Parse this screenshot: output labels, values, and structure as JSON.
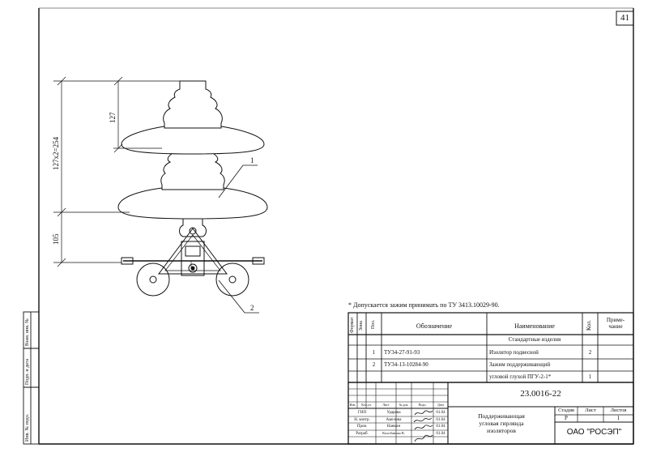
{
  "sheet": {
    "page_number": "41"
  },
  "drawing": {
    "dimensions": {
      "insulator_pitch": "127",
      "string_length": "127x2=254",
      "hardware_length": "105"
    },
    "callouts": [
      "1",
      "2"
    ]
  },
  "note": "* Допускается зажим принимать по ТУ 3413.10029-90.",
  "spec_table": {
    "headers": {
      "format": "Формат",
      "zone": "Зона",
      "pos": "Поз.",
      "designation": "Обозначение",
      "name": "Наименование",
      "qty": "Кол.",
      "remark": "Приме-\nчание"
    },
    "section_title": "Стандартные изделия",
    "rows": [
      {
        "pos": "1",
        "designation": "ТУ34-27-91-93",
        "name": "Изолятор подвесной",
        "qty": "2"
      },
      {
        "pos": "2",
        "designation": "ТУ34-13-10284-90",
        "name": "Зажим поддерживающий",
        "qty": ""
      },
      {
        "pos": "",
        "designation": "",
        "name": "угловой глухой ПГУ-2-1*",
        "qty": "1"
      }
    ]
  },
  "title_block": {
    "doc_number": "23.0016-22",
    "title_lines": [
      "Поддерживающая",
      "угловая гирлянда",
      "изоляторов"
    ],
    "company": "ОАО \"РОСЭП\"",
    "stage_header": "Стадия",
    "sheet_header": "Лист",
    "sheets_header": "Листов",
    "stage_value": "Р",
    "sheet_value": "",
    "sheets_value": "1",
    "change_headers": [
      "Изм.",
      "Кол.уч.",
      "Лист",
      "№ док.",
      "Подп.",
      "Дата"
    ],
    "signatures": [
      {
        "role": "ГИП",
        "name": "Ударова",
        "date": "01.04"
      },
      {
        "role": "Н. контр.",
        "name": "Амелина",
        "date": "01.04"
      },
      {
        "role": "Пров.",
        "name": "Нанкин",
        "date": "01.04"
      },
      {
        "role": "Разраб.",
        "name": "Колобанова В.",
        "date": "01.04"
      }
    ]
  },
  "side_stamps": [
    "Взам. инв. №",
    "Подп. и дата",
    "Инв. № подл."
  ],
  "colors": {
    "ink": "#111111",
    "paper": "#ffffff"
  }
}
